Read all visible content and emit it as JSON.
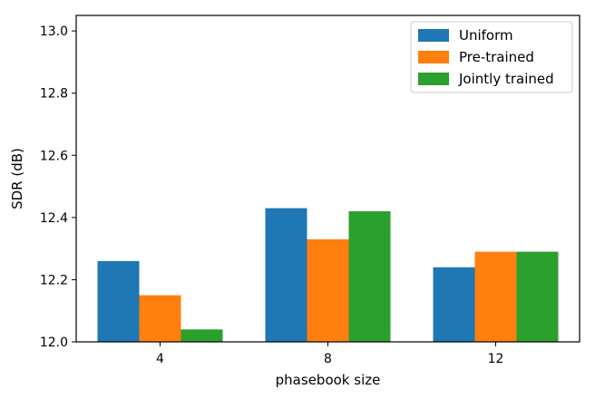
{
  "chart_data": {
    "type": "bar",
    "xlabel": "phasebook size",
    "ylabel": "SDR (dB)",
    "categories": [
      "4",
      "8",
      "12"
    ],
    "ylim": [
      12.0,
      13.05
    ],
    "yticks": [
      12.0,
      12.2,
      12.4,
      12.6,
      12.8,
      13.0
    ],
    "ytick_labels": [
      "12.0",
      "12.2",
      "12.4",
      "12.6",
      "12.8",
      "13.0"
    ],
    "grid": false,
    "legend_position": "top-right",
    "series": [
      {
        "name": "Uniform",
        "color": "#1f77b4",
        "values": [
          12.26,
          12.43,
          12.24
        ]
      },
      {
        "name": "Pre-trained",
        "color": "#ff7f0e",
        "values": [
          12.15,
          12.33,
          12.29
        ]
      },
      {
        "name": "Jointly trained",
        "color": "#2ca02c",
        "values": [
          12.04,
          12.42,
          12.29
        ]
      }
    ]
  }
}
